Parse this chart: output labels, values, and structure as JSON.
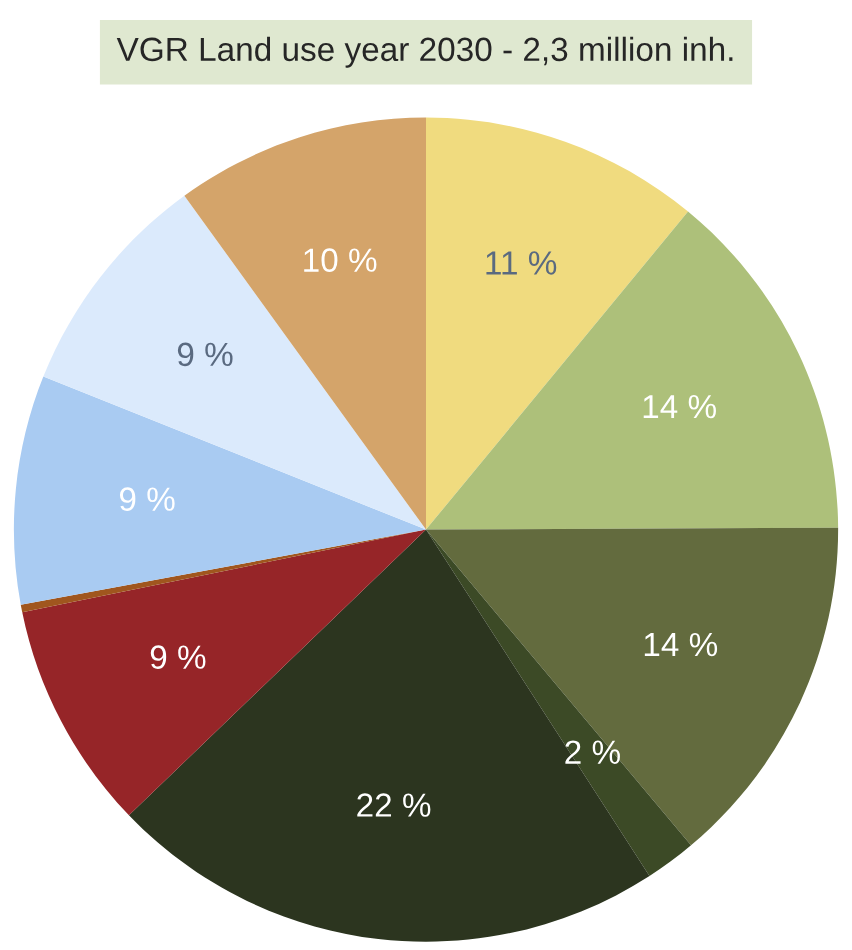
{
  "chart_data": {
    "type": "pie",
    "title": "VGR Land use year 2030 - 2,3 million inh.",
    "categories": [
      null,
      null,
      null,
      null,
      null,
      null,
      null,
      null,
      null,
      null
    ],
    "values": [
      11,
      14,
      14,
      2,
      22,
      9,
      0.3,
      9,
      9,
      10
    ],
    "value_labels": [
      "11 %",
      "14 %",
      "14 %",
      "2 %",
      "22 %",
      "9 %",
      null,
      "9 %",
      "9 %",
      "10 %"
    ],
    "colors": [
      "#f0db7f",
      "#adc07a",
      "#636b3e",
      "#3c4a26",
      "#2c351f",
      "#962528",
      "#a0561e",
      "#a9cbf2",
      "#dbeafc",
      "#d4a46a"
    ]
  }
}
